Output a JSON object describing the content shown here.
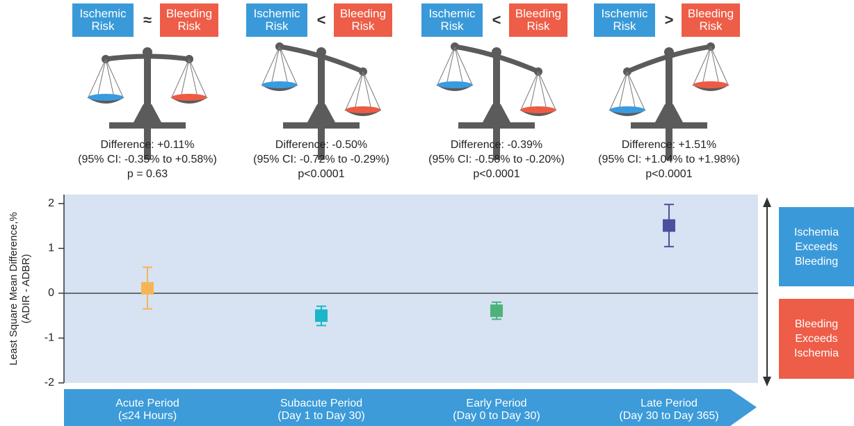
{
  "panels": [
    {
      "left": "Ischemic Risk",
      "symbol": "≈",
      "right": "Bleeding Risk",
      "difference": "Difference: +0.11%",
      "ci": "(95% CI: -0.35% to +0.58%)",
      "p": "p = 0.63"
    },
    {
      "left": "Ischemic Risk",
      "symbol": "<",
      "right": "Bleeding Risk",
      "difference": "Difference: -0.50%",
      "ci": "(95% CI: -0.72% to -0.29%)",
      "p": "p<0.0001"
    },
    {
      "left": "Ischemic Risk",
      "symbol": "<",
      "right": "Bleeding Risk",
      "difference": "Difference: -0.39%",
      "ci": "(95% CI: -0.58% to -0.20%)",
      "p": "p<0.0001"
    },
    {
      "left": "Ischemic Risk",
      "symbol": ">",
      "right": "Bleeding Risk",
      "difference": "Difference: +1.51%",
      "ci": "(95% CI: +1.04% to +1.98%)",
      "p": "p<0.0001"
    }
  ],
  "side_labels": {
    "upper": "Ischemia Exceeds Bleeding",
    "lower": "Bleeding Exceeds Ischemia"
  },
  "chart_data": {
    "type": "point",
    "y_label": "Least Square Mean Difference,%",
    "y_label_note": "(ADIR - ADBR)",
    "categories": [
      "Acute Period",
      "Subacute Period",
      "Early Period",
      "Late Period"
    ],
    "category_notes": [
      "(≤24 Hours)",
      "(Day 1 to Day 30)",
      "(Day 0 to Day 30)",
      "(Day 30 to Day 365)"
    ],
    "values": [
      0.11,
      -0.5,
      -0.39,
      1.51
    ],
    "ci_low": [
      -0.35,
      -0.72,
      -0.58,
      1.04
    ],
    "ci_high": [
      0.58,
      -0.29,
      -0.2,
      1.98
    ],
    "colors": [
      "#f6b554",
      "#1bb6c6",
      "#4db37a",
      "#4b4f9e"
    ],
    "ylim": [
      -2,
      2.2
    ],
    "yticks": [
      -2,
      -1,
      0,
      1,
      2
    ]
  }
}
